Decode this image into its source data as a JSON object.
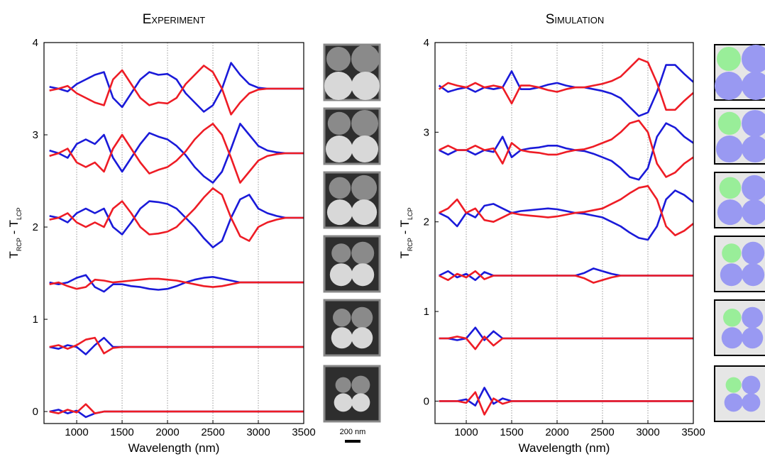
{
  "chart_data": [
    {
      "type": "line",
      "title": "Experiment",
      "xlabel": "Wavelength (nm)",
      "ylabel_parts": [
        "T",
        "RCP",
        " - T",
        "LCP"
      ],
      "x": [
        700,
        800,
        900,
        1000,
        1100,
        1200,
        1300,
        1400,
        1500,
        1600,
        1700,
        1800,
        1900,
        2000,
        2100,
        2200,
        2300,
        2400,
        2500,
        2600,
        2700,
        2800,
        2900,
        3000,
        3100,
        3200,
        3300,
        3400,
        3500
      ],
      "series": [
        {
          "color": "#1a1ad9",
          "values": [
            3.52,
            3.5,
            3.47,
            3.55,
            3.6,
            3.65,
            3.68,
            3.4,
            3.3,
            3.45,
            3.6,
            3.68,
            3.65,
            3.66,
            3.6,
            3.45,
            3.35,
            3.25,
            3.32,
            3.5,
            3.78,
            3.65,
            3.55,
            3.51,
            3.5,
            3.5,
            3.5,
            3.5,
            3.5
          ]
        },
        {
          "color": "#ee1c25",
          "values": [
            3.48,
            3.5,
            3.53,
            3.45,
            3.4,
            3.35,
            3.32,
            3.6,
            3.7,
            3.55,
            3.4,
            3.32,
            3.35,
            3.34,
            3.4,
            3.55,
            3.65,
            3.75,
            3.68,
            3.5,
            3.22,
            3.35,
            3.45,
            3.49,
            3.5,
            3.5,
            3.5,
            3.5,
            3.5
          ]
        },
        {
          "color": "#1a1ad9",
          "values": [
            2.83,
            2.8,
            2.75,
            2.9,
            2.95,
            2.9,
            3.0,
            2.75,
            2.6,
            2.75,
            2.9,
            3.02,
            2.98,
            2.95,
            2.88,
            2.78,
            2.65,
            2.55,
            2.48,
            2.6,
            2.85,
            3.12,
            3.0,
            2.88,
            2.83,
            2.81,
            2.8,
            2.8,
            2.8
          ]
        },
        {
          "color": "#ee1c25",
          "values": [
            2.77,
            2.8,
            2.85,
            2.7,
            2.65,
            2.7,
            2.6,
            2.85,
            3.0,
            2.85,
            2.7,
            2.58,
            2.62,
            2.65,
            2.72,
            2.82,
            2.95,
            3.05,
            3.12,
            3.0,
            2.75,
            2.48,
            2.6,
            2.72,
            2.77,
            2.79,
            2.8,
            2.8,
            2.8
          ]
        },
        {
          "color": "#1a1ad9",
          "values": [
            2.12,
            2.1,
            2.05,
            2.15,
            2.2,
            2.15,
            2.2,
            2.0,
            1.92,
            2.05,
            2.2,
            2.28,
            2.27,
            2.25,
            2.2,
            2.1,
            2.0,
            1.88,
            1.78,
            1.85,
            2.1,
            2.3,
            2.35,
            2.2,
            2.15,
            2.12,
            2.1,
            2.1,
            2.1
          ]
        },
        {
          "color": "#ee1c25",
          "values": [
            2.08,
            2.1,
            2.15,
            2.05,
            2.0,
            2.05,
            2.0,
            2.2,
            2.28,
            2.15,
            2.0,
            1.92,
            1.93,
            1.95,
            2.0,
            2.1,
            2.2,
            2.32,
            2.42,
            2.35,
            2.1,
            1.9,
            1.85,
            2.0,
            2.05,
            2.08,
            2.1,
            2.1,
            2.1
          ]
        },
        {
          "color": "#1a1ad9",
          "values": [
            1.4,
            1.38,
            1.4,
            1.45,
            1.48,
            1.35,
            1.3,
            1.38,
            1.38,
            1.36,
            1.35,
            1.33,
            1.32,
            1.33,
            1.36,
            1.4,
            1.43,
            1.45,
            1.46,
            1.44,
            1.42,
            1.4,
            1.4,
            1.4,
            1.4,
            1.4,
            1.4,
            1.4,
            1.4
          ]
        },
        {
          "color": "#ee1c25",
          "values": [
            1.38,
            1.4,
            1.36,
            1.33,
            1.35,
            1.43,
            1.42,
            1.4,
            1.41,
            1.42,
            1.43,
            1.44,
            1.44,
            1.43,
            1.42,
            1.4,
            1.38,
            1.36,
            1.35,
            1.36,
            1.38,
            1.4,
            1.4,
            1.4,
            1.4,
            1.4,
            1.4,
            1.4,
            1.4
          ]
        },
        {
          "color": "#1a1ad9",
          "values": [
            0.7,
            0.68,
            0.72,
            0.7,
            0.62,
            0.72,
            0.8,
            0.7,
            0.7,
            0.7,
            0.7,
            0.7,
            0.7,
            0.7,
            0.7,
            0.7,
            0.7,
            0.7,
            0.7,
            0.7,
            0.7,
            0.7,
            0.7,
            0.7,
            0.7,
            0.7,
            0.7,
            0.7,
            0.7
          ]
        },
        {
          "color": "#ee1c25",
          "values": [
            0.7,
            0.72,
            0.68,
            0.72,
            0.78,
            0.8,
            0.63,
            0.69,
            0.7,
            0.7,
            0.7,
            0.7,
            0.7,
            0.7,
            0.7,
            0.7,
            0.7,
            0.7,
            0.7,
            0.7,
            0.7,
            0.7,
            0.7,
            0.7,
            0.7,
            0.7,
            0.7,
            0.7,
            0.7
          ]
        },
        {
          "color": "#1a1ad9",
          "values": [
            0,
            0.02,
            -0.02,
            0.01,
            -0.06,
            -0.02,
            0,
            0,
            0,
            0,
            0,
            0,
            0,
            0,
            0,
            0,
            0,
            0,
            0,
            0,
            0,
            0,
            0,
            0,
            0,
            0,
            0,
            0,
            0
          ]
        },
        {
          "color": "#ee1c25",
          "values": [
            0,
            -0.02,
            0.02,
            -0.01,
            0.08,
            -0.02,
            0,
            0,
            0,
            0,
            0,
            0,
            0,
            0,
            0,
            0,
            0,
            0,
            0,
            0,
            0,
            0,
            0,
            0,
            0,
            0,
            0,
            0,
            0
          ]
        }
      ],
      "xlim": [
        640,
        3500
      ],
      "ylim": [
        -0.13,
        4
      ],
      "xticks": [
        1000,
        1500,
        2000,
        2500,
        3000,
        3500
      ],
      "yticks": [
        0,
        1,
        2,
        3,
        4
      ],
      "grid": "x",
      "scale_bar": "200 nm"
    },
    {
      "type": "line",
      "title": "Simulation",
      "xlabel": "Wavelength (nm)",
      "ylabel_parts": [
        "T",
        "RCP",
        " - T",
        "LCP"
      ],
      "x": [
        700,
        800,
        900,
        1000,
        1100,
        1200,
        1300,
        1400,
        1500,
        1600,
        1700,
        1800,
        1900,
        2000,
        2100,
        2200,
        2300,
        2400,
        2500,
        2600,
        2700,
        2800,
        2900,
        3000,
        3100,
        3200,
        3300,
        3400,
        3500
      ],
      "series": [
        {
          "color": "#1a1ad9",
          "values": [
            3.52,
            3.45,
            3.48,
            3.5,
            3.45,
            3.5,
            3.48,
            3.5,
            3.68,
            3.48,
            3.48,
            3.5,
            3.53,
            3.55,
            3.52,
            3.5,
            3.5,
            3.48,
            3.46,
            3.43,
            3.38,
            3.28,
            3.18,
            3.22,
            3.45,
            3.75,
            3.75,
            3.65,
            3.56
          ]
        },
        {
          "color": "#ee1c25",
          "values": [
            3.48,
            3.55,
            3.52,
            3.5,
            3.55,
            3.5,
            3.52,
            3.5,
            3.32,
            3.52,
            3.52,
            3.5,
            3.47,
            3.45,
            3.48,
            3.5,
            3.5,
            3.52,
            3.54,
            3.57,
            3.62,
            3.72,
            3.82,
            3.78,
            3.55,
            3.25,
            3.25,
            3.35,
            3.44
          ]
        },
        {
          "color": "#1a1ad9",
          "values": [
            2.8,
            2.75,
            2.8,
            2.8,
            2.75,
            2.8,
            2.78,
            2.95,
            2.72,
            2.8,
            2.82,
            2.83,
            2.85,
            2.85,
            2.82,
            2.8,
            2.79,
            2.76,
            2.72,
            2.68,
            2.6,
            2.5,
            2.47,
            2.6,
            2.95,
            3.1,
            3.05,
            2.95,
            2.88
          ]
        },
        {
          "color": "#ee1c25",
          "values": [
            2.8,
            2.85,
            2.8,
            2.8,
            2.85,
            2.8,
            2.82,
            2.65,
            2.88,
            2.8,
            2.78,
            2.77,
            2.75,
            2.75,
            2.78,
            2.8,
            2.81,
            2.84,
            2.88,
            2.92,
            3.0,
            3.1,
            3.13,
            3.0,
            2.65,
            2.5,
            2.55,
            2.65,
            2.72
          ]
        },
        {
          "color": "#1a1ad9",
          "values": [
            2.1,
            2.05,
            1.95,
            2.1,
            2.05,
            2.18,
            2.2,
            2.15,
            2.1,
            2.12,
            2.13,
            2.14,
            2.15,
            2.14,
            2.12,
            2.1,
            2.09,
            2.07,
            2.05,
            2.0,
            1.95,
            1.88,
            1.82,
            1.8,
            1.95,
            2.25,
            2.35,
            2.3,
            2.22
          ]
        },
        {
          "color": "#ee1c25",
          "values": [
            2.1,
            2.15,
            2.25,
            2.1,
            2.15,
            2.02,
            2.0,
            2.05,
            2.1,
            2.08,
            2.07,
            2.06,
            2.05,
            2.06,
            2.08,
            2.1,
            2.11,
            2.13,
            2.15,
            2.2,
            2.25,
            2.32,
            2.38,
            2.4,
            2.25,
            1.95,
            1.85,
            1.9,
            1.98
          ]
        },
        {
          "color": "#1a1ad9",
          "values": [
            1.4,
            1.45,
            1.38,
            1.42,
            1.35,
            1.44,
            1.4,
            1.4,
            1.4,
            1.4,
            1.4,
            1.4,
            1.4,
            1.4,
            1.4,
            1.4,
            1.43,
            1.48,
            1.45,
            1.42,
            1.4,
            1.4,
            1.4,
            1.4,
            1.4,
            1.4,
            1.4,
            1.4,
            1.4
          ]
        },
        {
          "color": "#ee1c25",
          "values": [
            1.4,
            1.35,
            1.42,
            1.38,
            1.45,
            1.36,
            1.4,
            1.4,
            1.4,
            1.4,
            1.4,
            1.4,
            1.4,
            1.4,
            1.4,
            1.4,
            1.37,
            1.32,
            1.35,
            1.38,
            1.4,
            1.4,
            1.4,
            1.4,
            1.4,
            1.4,
            1.4,
            1.4,
            1.4
          ]
        },
        {
          "color": "#1a1ad9",
          "values": [
            0.7,
            0.7,
            0.68,
            0.7,
            0.82,
            0.68,
            0.78,
            0.7,
            0.7,
            0.7,
            0.7,
            0.7,
            0.7,
            0.7,
            0.7,
            0.7,
            0.7,
            0.7,
            0.7,
            0.7,
            0.7,
            0.7,
            0.7,
            0.7,
            0.7,
            0.7,
            0.7,
            0.7,
            0.7
          ]
        },
        {
          "color": "#ee1c25",
          "values": [
            0.7,
            0.7,
            0.72,
            0.7,
            0.58,
            0.72,
            0.62,
            0.7,
            0.7,
            0.7,
            0.7,
            0.7,
            0.7,
            0.7,
            0.7,
            0.7,
            0.7,
            0.7,
            0.7,
            0.7,
            0.7,
            0.7,
            0.7,
            0.7,
            0.7,
            0.7,
            0.7,
            0.7,
            0.7
          ]
        },
        {
          "color": "#1a1ad9",
          "values": [
            0,
            0,
            0,
            0.02,
            -0.05,
            0.15,
            -0.03,
            0.03,
            0,
            0,
            0,
            0,
            0,
            0,
            0,
            0,
            0,
            0,
            0,
            0,
            0,
            0,
            0,
            0,
            0,
            0,
            0,
            0,
            0
          ]
        },
        {
          "color": "#ee1c25",
          "values": [
            0,
            0,
            0,
            -0.02,
            0.1,
            -0.15,
            0.03,
            -0.03,
            0,
            0,
            0,
            0,
            0,
            0,
            0,
            0,
            0,
            0,
            0,
            0,
            0,
            0,
            0,
            0,
            0,
            0,
            0,
            0,
            0
          ]
        }
      ],
      "xlim": [
        656,
        3500
      ],
      "ylim": [
        -0.25,
        4
      ],
      "xticks": [
        1000,
        1500,
        2000,
        2500,
        3000,
        3500
      ],
      "yticks": [
        0,
        1,
        2,
        3,
        4
      ],
      "grid": "x"
    }
  ]
}
